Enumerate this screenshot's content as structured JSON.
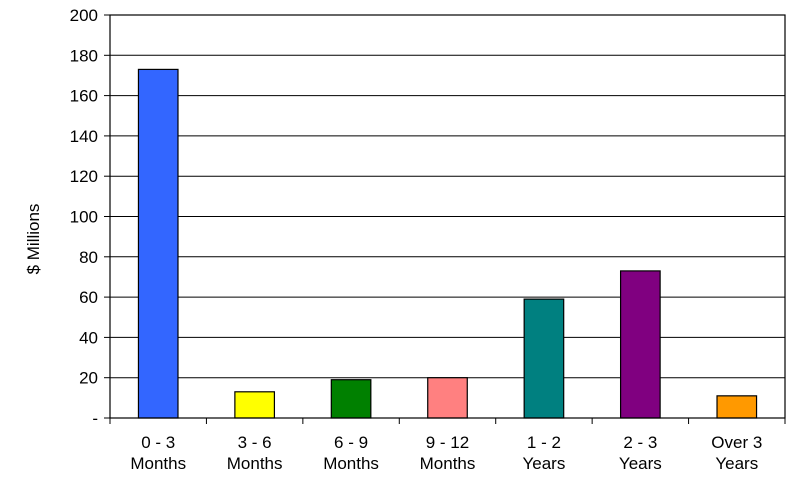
{
  "chart_data": {
    "type": "bar",
    "title": "",
    "xlabel": "",
    "ylabel": "$ Millions",
    "ylim": [
      0,
      200
    ],
    "ystep": 20,
    "yticks": [
      "-",
      "20",
      "40",
      "60",
      "80",
      "100",
      "120",
      "140",
      "160",
      "180",
      "200"
    ],
    "categories": [
      [
        "0 - 3",
        "Months"
      ],
      [
        "3 - 6",
        "Months"
      ],
      [
        "6 - 9",
        "Months"
      ],
      [
        "9 - 12",
        "Months"
      ],
      [
        "1 - 2",
        "Years"
      ],
      [
        "2 - 3",
        "Years"
      ],
      [
        "Over 3",
        "Years"
      ]
    ],
    "values": [
      173,
      13,
      19,
      20,
      59,
      73,
      11
    ],
    "colors": [
      "#3366FF",
      "#FFFF00",
      "#008000",
      "#FF8080",
      "#008080",
      "#800080",
      "#FF9900"
    ],
    "grid": true,
    "legend": "none"
  }
}
